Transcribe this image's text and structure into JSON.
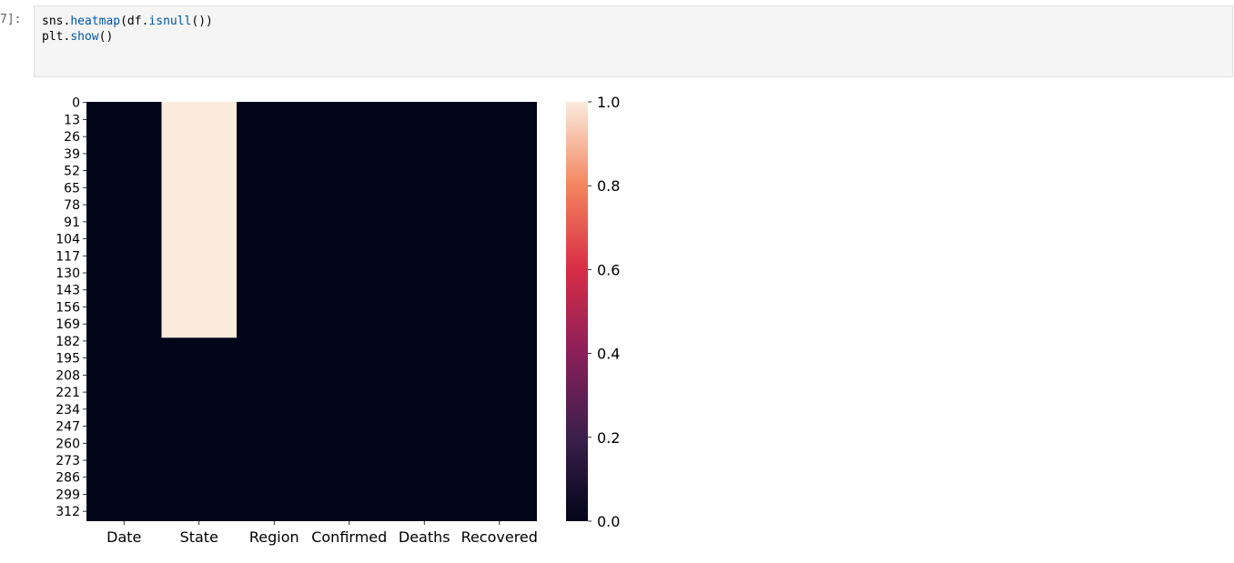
{
  "cell": {
    "prompt": "7]:",
    "code_lines": [
      [
        {
          "text": "sns.",
          "cls": ""
        },
        {
          "text": "heatmap",
          "cls": "fn"
        },
        {
          "text": "(df.",
          "cls": ""
        },
        {
          "text": "isnull",
          "cls": "fn"
        },
        {
          "text": "())",
          "cls": ""
        }
      ],
      [
        {
          "text": "plt.",
          "cls": ""
        },
        {
          "text": "show",
          "cls": "fn"
        },
        {
          "text": "()",
          "cls": ""
        }
      ]
    ]
  },
  "chart_data": {
    "type": "heatmap",
    "columns": [
      "Date",
      "State",
      "Region",
      "Confirmed",
      "Deaths",
      "Recovered"
    ],
    "row_tick_labels": [
      "0",
      "13",
      "26",
      "39",
      "52",
      "65",
      "78",
      "91",
      "104",
      "117",
      "130",
      "143",
      "156",
      "169",
      "182",
      "195",
      "208",
      "221",
      "234",
      "247",
      "260",
      "273",
      "286",
      "299",
      "312"
    ],
    "row_count": 320,
    "missing_ranges": [
      {
        "column": "State",
        "start_row": 0,
        "end_row": 180
      }
    ],
    "colorbar": {
      "range": [
        0.0,
        1.0
      ],
      "tick_labels": [
        "0.0",
        "0.2",
        "0.4",
        "0.6",
        "0.8",
        "1.0"
      ],
      "colormap": "rocket",
      "low_color": "#03051a",
      "high_color": "#faebdd"
    }
  }
}
